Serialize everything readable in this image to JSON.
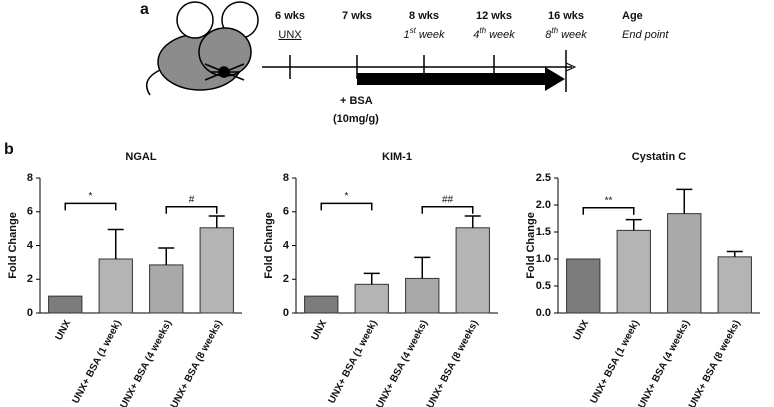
{
  "panel_labels": [
    "a",
    "b"
  ],
  "timeline": {
    "ticks": [
      {
        "age": "6 wks",
        "event": "UNX"
      },
      {
        "age": "7 wks"
      },
      {
        "age": "8 wks",
        "week": [
          "1",
          "st",
          " week"
        ]
      },
      {
        "age": "12 wks",
        "week": [
          "4",
          "th",
          " week"
        ]
      },
      {
        "age": "16 wks",
        "week": [
          "8",
          "th",
          " week"
        ]
      }
    ],
    "age_label": "Age",
    "end_label": "End point",
    "treatment": [
      "+ BSA",
      "(10mg/g)"
    ]
  },
  "chart_data": [
    {
      "type": "bar",
      "title": "NGAL",
      "y_label": "Fold Change",
      "categories": [
        "UNX",
        "UNX+ BSA (1 week)",
        "UNX+ BSA (4 weeks)",
        "UNX+ BSA (8 weeks)"
      ],
      "values": [
        1,
        3.2,
        2.85,
        5.05
      ],
      "errors": [
        null,
        1.75,
        1.0,
        0.7
      ],
      "colors": [
        "#7c7c7c",
        "#b4b4b4",
        "#a9a9a9",
        "#b4b4b4"
      ],
      "ylim": [
        0,
        8
      ],
      "yticks": [
        0,
        2,
        4,
        6,
        8
      ],
      "annotations": [
        {
          "text": "*",
          "between": [
            "UNX",
            "UNX+ BSA (1 week)"
          ],
          "y": 6.5
        },
        {
          "text": "#",
          "between": [
            "UNX+ BSA (4 weeks)",
            "UNX+ BSA (8 weeks)"
          ],
          "y": 6.3
        }
      ]
    },
    {
      "type": "bar",
      "title": "KIM-1",
      "y_label": "Fold Change",
      "categories": [
        "UNX",
        "UNX+ BSA (1 week)",
        "UNX+ BSA (4 weeks)",
        "UNX+ BSA (8 weeks)"
      ],
      "values": [
        1,
        1.7,
        2.05,
        5.05
      ],
      "errors": [
        null,
        0.65,
        1.25,
        0.7
      ],
      "colors": [
        "#7c7c7c",
        "#b4b4b4",
        "#a9a9a9",
        "#b4b4b4"
      ],
      "ylim": [
        0,
        8
      ],
      "yticks": [
        0,
        2,
        4,
        6,
        8
      ],
      "annotations": [
        {
          "text": "*",
          "between": [
            "UNX",
            "UNX+ BSA (1 week)"
          ],
          "y": 6.5
        },
        {
          "text": "##",
          "between": [
            "UNX+ BSA (4 weeks)",
            "UNX+ BSA (8 weeks)"
          ],
          "y": 6.3
        }
      ]
    },
    {
      "type": "bar",
      "title": "Cystatin C",
      "y_label": "Fold Change",
      "categories": [
        "UNX",
        "UNX+ BSA (1 week)",
        "UNX+ BSA (4 weeks)",
        "UNX+ BSA (8 weeks)"
      ],
      "values": [
        1,
        1.53,
        1.84,
        1.04
      ],
      "errors": [
        null,
        0.2,
        0.45,
        0.1
      ],
      "colors": [
        "#7c7c7c",
        "#b4b4b4",
        "#a9a9a9",
        "#b4b4b4"
      ],
      "ylim": [
        0,
        2.5
      ],
      "yticks": [
        {
          "value": 0,
          "label": "0.0"
        },
        {
          "value": 0.5,
          "label": "0.5"
        },
        {
          "value": 1,
          "label": "1.0"
        },
        {
          "value": 1.5,
          "label": "1.5"
        },
        {
          "value": 2,
          "label": "2.0"
        },
        {
          "value": 2.5,
          "label": "2.5"
        }
      ],
      "annotations": [
        {
          "text": "**",
          "between": [
            "UNX",
            "UNX+ BSA (1 week)"
          ],
          "y": 1.95
        }
      ]
    }
  ]
}
